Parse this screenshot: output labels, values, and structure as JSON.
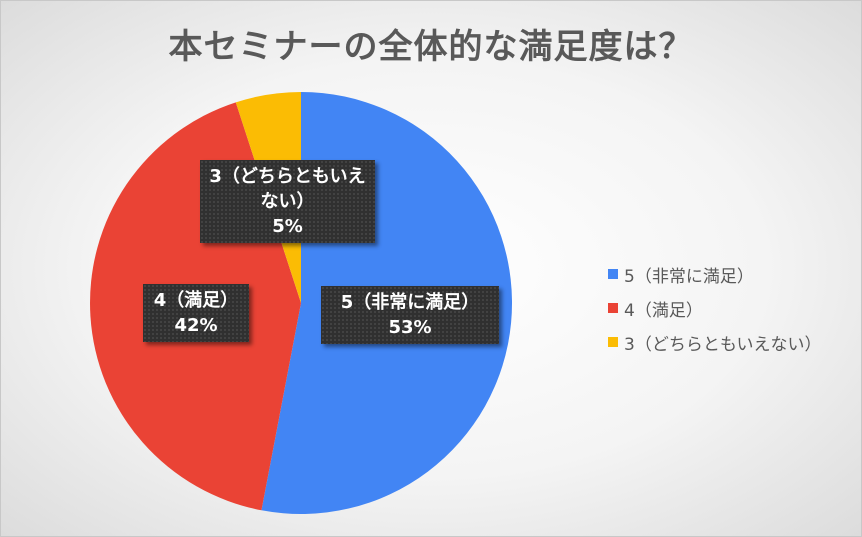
{
  "chart_data": {
    "type": "pie",
    "title": "本セミナーの全体的な満足度は？",
    "categories": [
      "5（非常に満足）",
      "4（満足）",
      "3（どちらともいえない）"
    ],
    "values": [
      53,
      42,
      5
    ],
    "colors": [
      "#4285f4",
      "#ea4335",
      "#fbbc04"
    ],
    "data_labels": [
      {
        "category": "5（非常に満足）",
        "percent": "53%"
      },
      {
        "category": "4（満足）",
        "percent": "42%"
      },
      {
        "category": "3（どちらともいえない）",
        "percent": "5%"
      }
    ],
    "legend_position": "right"
  }
}
